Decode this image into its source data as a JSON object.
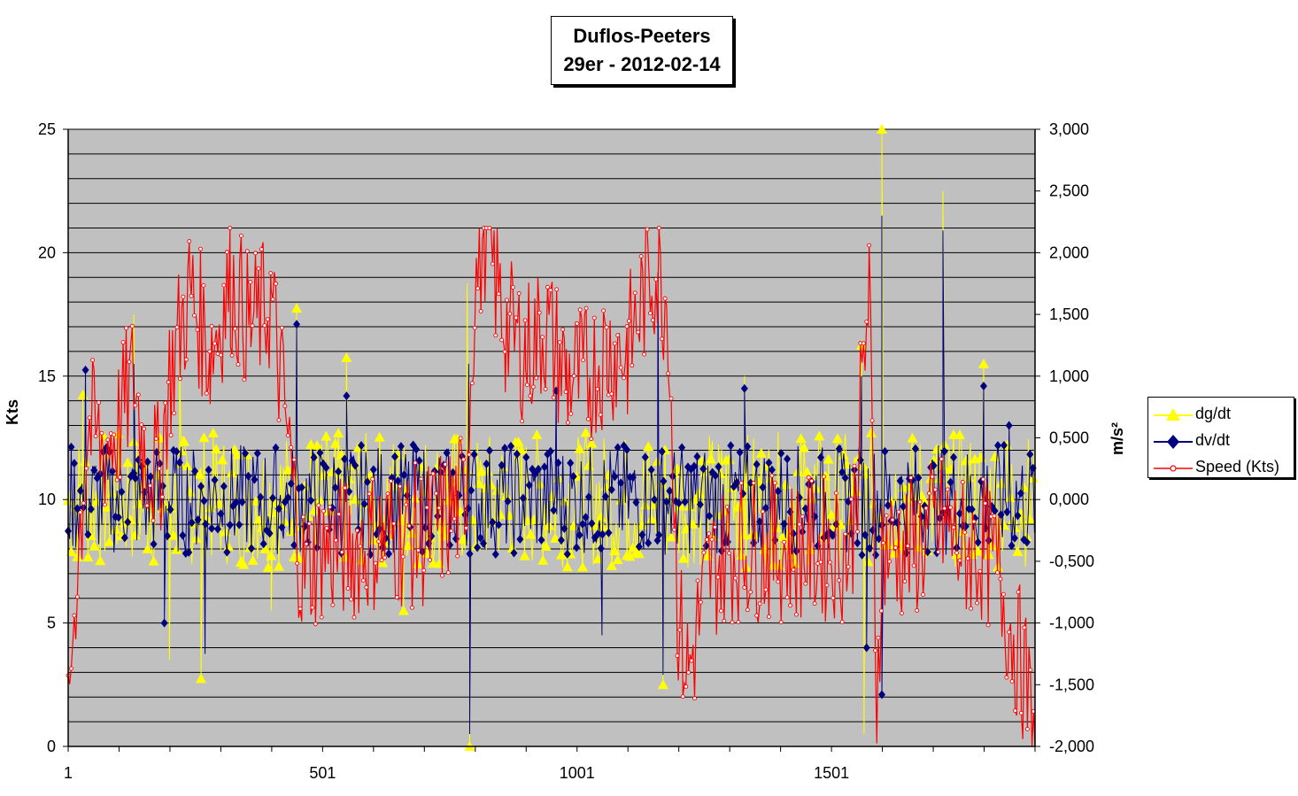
{
  "title": [
    "Duflos-Peeters",
    "29er - 2012-02-14"
  ],
  "colors": {
    "plot_bg": "#c0c0c0",
    "grid": "#000000",
    "dg": "#ffff00",
    "dv": "#00007f",
    "speed": "#ff0000"
  },
  "chart_data": {
    "type": "line",
    "title": "Duflos-Peeters 29er - 2012-02-14",
    "xlabel": "",
    "ylabel_left": "Kts",
    "ylabel_right": "m/s²",
    "xlim": [
      1,
      1901
    ],
    "x_ticks": [
      "1",
      "501",
      "1001",
      "1501"
    ],
    "x_tick_values": [
      1,
      501,
      1001,
      1501
    ],
    "ylim_left": [
      0,
      25
    ],
    "y_ticks_left": [
      "0",
      "5",
      "10",
      "15",
      "20",
      "25"
    ],
    "ylim_right": [
      -2,
      3
    ],
    "y_ticks_right": [
      "-2,000",
      "-1,500",
      "-1,000",
      "-0,500",
      "0,000",
      "0,500",
      "1,000",
      "1,500",
      "2,000",
      "2,500",
      "3,000"
    ],
    "grid": true,
    "legend_position": "right",
    "series": [
      {
        "name": "dg/dt",
        "axis": "right",
        "marker": "triangle",
        "color": "#ffff00",
        "points": [
          [
            30,
            0.85
          ],
          [
            130,
            1.5
          ],
          [
            220,
            1.15
          ],
          [
            262,
            -1.45
          ],
          [
            200,
            -1.3
          ],
          [
            450,
            1.55
          ],
          [
            548,
            1.15
          ],
          [
            790,
            -2.0
          ],
          [
            785,
            1.75
          ],
          [
            1170,
            -1.5
          ],
          [
            1330,
            1.0
          ],
          [
            1565,
            -1.9
          ],
          [
            1560,
            1.25
          ],
          [
            1600,
            3.0
          ],
          [
            1720,
            2.5
          ],
          [
            1800,
            1.1
          ],
          [
            1050,
            -1.1
          ],
          [
            660,
            -0.9
          ],
          [
            1860,
            -0.2
          ],
          [
            400,
            -0.9
          ]
        ]
      },
      {
        "name": "dv/dt",
        "axis": "right",
        "marker": "diamond",
        "color": "#00007f",
        "points": [
          [
            35,
            1.05
          ],
          [
            130,
            1.1
          ],
          [
            190,
            -1.0
          ],
          [
            450,
            1.42
          ],
          [
            548,
            0.84
          ],
          [
            790,
            -1.9
          ],
          [
            788,
            1.1
          ],
          [
            960,
            0.88
          ],
          [
            1160,
            1.84
          ],
          [
            1170,
            -1.42
          ],
          [
            1330,
            0.9
          ],
          [
            1560,
            1.0
          ],
          [
            1600,
            2.3
          ],
          [
            1600,
            -1.58
          ],
          [
            1720,
            2.18
          ],
          [
            1800,
            0.92
          ],
          [
            1850,
            0.6
          ],
          [
            1050,
            -1.1
          ],
          [
            270,
            -1.25
          ],
          [
            1570,
            -1.2
          ]
        ]
      },
      {
        "name": "Speed (Kts)",
        "axis": "left",
        "marker": "circle",
        "color": "#ff0000",
        "points": [
          [
            1,
            0
          ],
          [
            10,
            5
          ],
          [
            40,
            13
          ],
          [
            70,
            12
          ],
          [
            100,
            13
          ],
          [
            130,
            15
          ],
          [
            150,
            12
          ],
          [
            180,
            11
          ],
          [
            200,
            15
          ],
          [
            240,
            18.5
          ],
          [
            280,
            16
          ],
          [
            320,
            18.8
          ],
          [
            360,
            17
          ],
          [
            400,
            18
          ],
          [
            430,
            13
          ],
          [
            460,
            7
          ],
          [
            500,
            8
          ],
          [
            560,
            8
          ],
          [
            620,
            8.5
          ],
          [
            700,
            8.5
          ],
          [
            780,
            10
          ],
          [
            800,
            18.5
          ],
          [
            820,
            21
          ],
          [
            860,
            17
          ],
          [
            900,
            16
          ],
          [
            940,
            17
          ],
          [
            980,
            15
          ],
          [
            1020,
            15
          ],
          [
            1060,
            16
          ],
          [
            1100,
            16
          ],
          [
            1150,
            19.5
          ],
          [
            1180,
            18
          ],
          [
            1200,
            5
          ],
          [
            1220,
            3
          ],
          [
            1260,
            7
          ],
          [
            1300,
            8
          ],
          [
            1360,
            8
          ],
          [
            1420,
            8
          ],
          [
            1480,
            8
          ],
          [
            1540,
            8
          ],
          [
            1575,
            18.5
          ],
          [
            1590,
            2
          ],
          [
            1600,
            8
          ],
          [
            1660,
            8
          ],
          [
            1720,
            9
          ],
          [
            1760,
            8
          ],
          [
            1800,
            8
          ],
          [
            1830,
            7
          ],
          [
            1850,
            5
          ],
          [
            1880,
            3
          ],
          [
            1901,
            0
          ]
        ]
      }
    ]
  }
}
